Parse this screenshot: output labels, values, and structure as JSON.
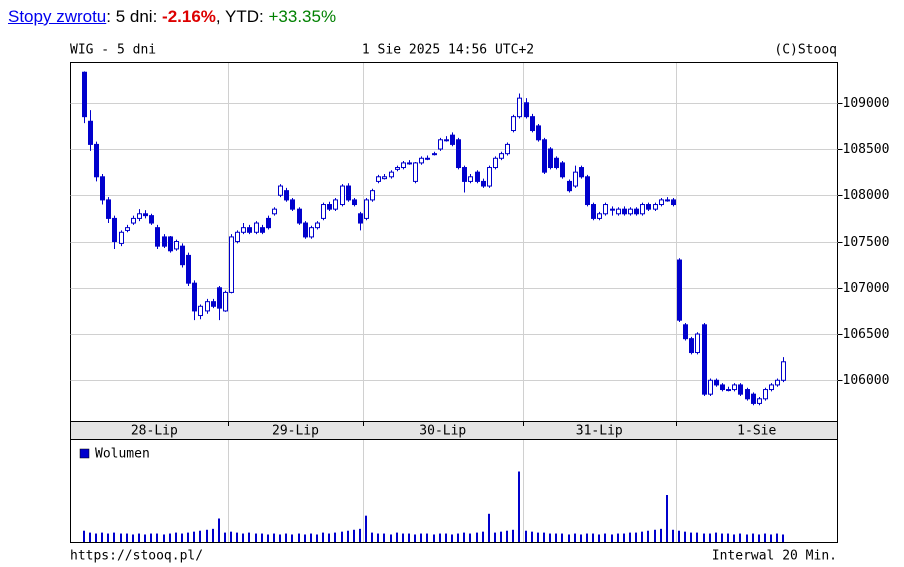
{
  "header": {
    "link": "Stopy zwrotu",
    "period_label": ": 5 dni: ",
    "period_return": "-2.16%",
    "ytd_label": ", YTD: ",
    "ytd_return": "+33.35%"
  },
  "chart_data": {
    "type": "candlestick",
    "title": "WIG - 5 dni",
    "timestamp": "1 Sie 2025 14:56 UTC+2",
    "source": "(C)Stooq",
    "footer_url": "https://stooq.pl/",
    "interval": "Interwal 20 Min.",
    "color": "#0000cc",
    "grid": true,
    "day_labels": [
      "28-Lip",
      "29-Lip",
      "30-Lip",
      "31-Lip",
      "1-Sie"
    ],
    "day_starts": [
      0,
      24,
      46,
      72,
      97
    ],
    "ylim": [
      105560,
      109430
    ],
    "yticks": [
      106000,
      106500,
      107000,
      107500,
      108000,
      108500,
      109000
    ],
    "ohlc": [
      [
        109330,
        109340,
        108780,
        108850
      ],
      [
        108800,
        108920,
        108480,
        108550
      ],
      [
        108550,
        108580,
        108150,
        108200
      ],
      [
        108200,
        108230,
        107900,
        107950
      ],
      [
        107950,
        107980,
        107700,
        107750
      ],
      [
        107750,
        107780,
        107420,
        107500
      ],
      [
        107480,
        107620,
        107450,
        107600
      ],
      [
        107620,
        107680,
        107600,
        107650
      ],
      [
        107700,
        107780,
        107680,
        107750
      ],
      [
        107750,
        107850,
        107720,
        107800
      ],
      [
        107800,
        107840,
        107750,
        107780
      ],
      [
        107780,
        107800,
        107680,
        107700
      ],
      [
        107650,
        107680,
        107420,
        107450
      ],
      [
        107550,
        107580,
        107430,
        107450
      ],
      [
        107550,
        107560,
        107380,
        107400
      ],
      [
        107420,
        107520,
        107400,
        107500
      ],
      [
        107450,
        107480,
        107220,
        107250
      ],
      [
        107350,
        107380,
        107020,
        107050
      ],
      [
        107050,
        107080,
        106650,
        106750
      ],
      [
        106700,
        106820,
        106660,
        106800
      ],
      [
        106750,
        106880,
        106720,
        106850
      ],
      [
        106850,
        106880,
        106780,
        106800
      ],
      [
        107000,
        107020,
        106650,
        106780
      ],
      [
        106750,
        106970,
        106740,
        106950
      ],
      [
        106950,
        107580,
        106940,
        107550
      ],
      [
        107500,
        107620,
        107480,
        107600
      ],
      [
        107600,
        107700,
        107580,
        107650
      ],
      [
        107650,
        107680,
        107580,
        107600
      ],
      [
        107600,
        107720,
        107580,
        107700
      ],
      [
        107650,
        107680,
        107580,
        107600
      ],
      [
        107750,
        107780,
        107630,
        107650
      ],
      [
        107800,
        107870,
        107780,
        107850
      ],
      [
        108000,
        108120,
        107980,
        108100
      ],
      [
        108050,
        108080,
        107930,
        107950
      ],
      [
        107950,
        107970,
        107830,
        107850
      ],
      [
        107850,
        107870,
        107680,
        107700
      ],
      [
        107700,
        107720,
        107530,
        107550
      ],
      [
        107550,
        107670,
        107530,
        107650
      ],
      [
        107650,
        107720,
        107630,
        107700
      ],
      [
        107750,
        107920,
        107730,
        107900
      ],
      [
        107900,
        107930,
        107830,
        107850
      ],
      [
        107850,
        107970,
        107830,
        107950
      ],
      [
        107900,
        108120,
        107880,
        108100
      ],
      [
        108100,
        108130,
        107930,
        107950
      ],
      [
        107950,
        107970,
        107880,
        107900
      ],
      [
        107800,
        107820,
        107620,
        107700
      ],
      [
        107750,
        107970,
        107730,
        107950
      ],
      [
        107950,
        108070,
        107930,
        108050
      ],
      [
        108150,
        108220,
        108130,
        108200
      ],
      [
        108180,
        108230,
        108170,
        108200
      ],
      [
        108200,
        108270,
        108180,
        108250
      ],
      [
        108280,
        108320,
        108260,
        108300
      ],
      [
        108300,
        108370,
        108280,
        108350
      ],
      [
        108340,
        108380,
        108330,
        108350
      ],
      [
        108150,
        108360,
        108130,
        108350
      ],
      [
        108350,
        108420,
        108330,
        108400
      ],
      [
        108390,
        108430,
        108380,
        108400
      ],
      [
        108440,
        108470,
        108430,
        108450
      ],
      [
        108500,
        108620,
        108480,
        108600
      ],
      [
        108590,
        108640,
        108580,
        108600
      ],
      [
        108650,
        108680,
        108530,
        108550
      ],
      [
        108600,
        108620,
        108280,
        108300
      ],
      [
        108300,
        108320,
        108030,
        108150
      ],
      [
        108150,
        108230,
        108130,
        108200
      ],
      [
        108250,
        108270,
        108130,
        108150
      ],
      [
        108150,
        108180,
        108080,
        108100
      ],
      [
        108100,
        108320,
        108080,
        108300
      ],
      [
        108300,
        108420,
        108280,
        108400
      ],
      [
        108400,
        108470,
        108380,
        108450
      ],
      [
        108450,
        108570,
        108430,
        108550
      ],
      [
        108700,
        108870,
        108680,
        108850
      ],
      [
        108850,
        109100,
        108830,
        109050
      ],
      [
        109000,
        109050,
        108830,
        108850
      ],
      [
        108850,
        108880,
        108680,
        108700
      ],
      [
        108750,
        108770,
        108580,
        108600
      ],
      [
        108600,
        108620,
        108230,
        108250
      ],
      [
        108500,
        108520,
        108280,
        108300
      ],
      [
        108400,
        108420,
        108280,
        108300
      ],
      [
        108350,
        108370,
        108180,
        108200
      ],
      [
        108150,
        108170,
        108030,
        108050
      ],
      [
        108100,
        108320,
        108080,
        108250
      ],
      [
        108300,
        108320,
        108180,
        108200
      ],
      [
        108200,
        108220,
        107880,
        107900
      ],
      [
        107900,
        107920,
        107730,
        107750
      ],
      [
        107750,
        107820,
        107730,
        107800
      ],
      [
        107800,
        107920,
        107780,
        107900
      ],
      [
        107840,
        107880,
        107780,
        107850
      ],
      [
        107800,
        107870,
        107780,
        107850
      ],
      [
        107850,
        107880,
        107780,
        107800
      ],
      [
        107800,
        107870,
        107780,
        107850
      ],
      [
        107850,
        107870,
        107780,
        107800
      ],
      [
        107800,
        107920,
        107780,
        107900
      ],
      [
        107900,
        107920,
        107830,
        107850
      ],
      [
        107850,
        107920,
        107830,
        107900
      ],
      [
        107900,
        107970,
        107880,
        107950
      ],
      [
        107940,
        107980,
        107930,
        107950
      ],
      [
        107950,
        107970,
        107880,
        107900
      ],
      [
        107300,
        107320,
        106630,
        106650
      ],
      [
        106600,
        106620,
        106430,
        106450
      ],
      [
        106450,
        106470,
        106280,
        106300
      ],
      [
        106300,
        106520,
        106280,
        106500
      ],
      [
        106600,
        106620,
        105830,
        105850
      ],
      [
        105850,
        106020,
        105830,
        106000
      ],
      [
        106000,
        106020,
        105930,
        105950
      ],
      [
        105950,
        105970,
        105880,
        105900
      ],
      [
        105900,
        105930,
        105880,
        105900
      ],
      [
        105900,
        105970,
        105880,
        105950
      ],
      [
        105950,
        105970,
        105830,
        105850
      ],
      [
        105900,
        105920,
        105780,
        105800
      ],
      [
        105850,
        105870,
        105730,
        105750
      ],
      [
        105750,
        105820,
        105730,
        105800
      ],
      [
        105800,
        105920,
        105780,
        105900
      ],
      [
        105900,
        105970,
        105880,
        105950
      ],
      [
        105950,
        106020,
        105930,
        106000
      ],
      [
        106000,
        106250,
        105980,
        106200
      ]
    ],
    "volume_name": "Wolumen",
    "volume_ylim": [
      0,
      100
    ],
    "volume": [
      12,
      10,
      9,
      10,
      9,
      10,
      9,
      9,
      8,
      9,
      8,
      9,
      9,
      8,
      9,
      10,
      9,
      10,
      11,
      12,
      13,
      14,
      25,
      10,
      11,
      10,
      9,
      10,
      9,
      9,
      8,
      9,
      8,
      9,
      8,
      9,
      8,
      9,
      8,
      10,
      9,
      10,
      11,
      12,
      13,
      14,
      28,
      10,
      9,
      9,
      8,
      10,
      9,
      9,
      8,
      9,
      9,
      8,
      9,
      9,
      8,
      9,
      10,
      9,
      10,
      11,
      30,
      10,
      11,
      12,
      13,
      75,
      12,
      11,
      10,
      10,
      9,
      9,
      9,
      8,
      9,
      8,
      9,
      9,
      8,
      9,
      8,
      9,
      9,
      10,
      10,
      11,
      12,
      13,
      14,
      50,
      13,
      12,
      11,
      10,
      10,
      9,
      9,
      10,
      9,
      9,
      8,
      9,
      8,
      9,
      8,
      9,
      8,
      9,
      8
    ]
  }
}
